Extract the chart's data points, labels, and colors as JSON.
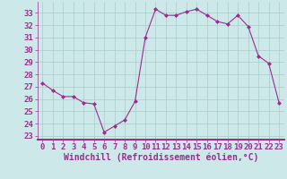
{
  "x": [
    0,
    1,
    2,
    3,
    4,
    5,
    6,
    7,
    8,
    9,
    10,
    11,
    12,
    13,
    14,
    15,
    16,
    17,
    18,
    19,
    20,
    21,
    22,
    23
  ],
  "y": [
    27.3,
    26.7,
    26.2,
    26.2,
    25.7,
    25.6,
    23.3,
    23.8,
    24.3,
    25.8,
    31.0,
    33.3,
    32.8,
    32.8,
    33.1,
    33.3,
    32.8,
    32.3,
    32.1,
    32.8,
    31.9,
    29.5,
    28.9,
    25.7
  ],
  "line_color": "#9b2d8e",
  "marker": "D",
  "marker_size": 2.0,
  "bg_color": "#cce8e8",
  "grid_color": "#aacccc",
  "xlabel": "Windchill (Refroidissement éolien,°C)",
  "xlabel_fontsize": 7,
  "tick_fontsize": 6.5,
  "ylim": [
    22.7,
    33.9
  ],
  "xlim": [
    -0.5,
    23.5
  ],
  "yticks": [
    23,
    24,
    25,
    26,
    27,
    28,
    29,
    30,
    31,
    32,
    33
  ],
  "xticks": [
    0,
    1,
    2,
    3,
    4,
    5,
    6,
    7,
    8,
    9,
    10,
    11,
    12,
    13,
    14,
    15,
    16,
    17,
    18,
    19,
    20,
    21,
    22,
    23
  ]
}
